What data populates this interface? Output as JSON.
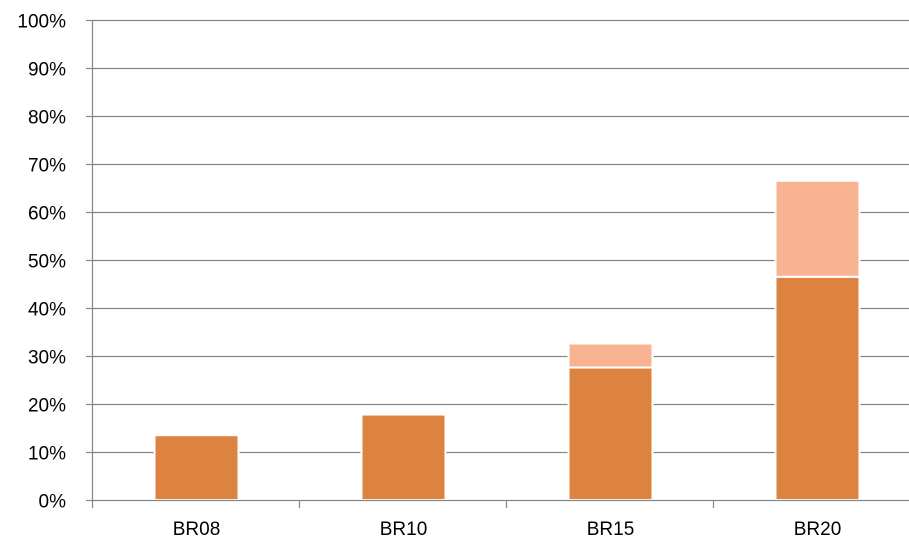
{
  "chart_data": {
    "type": "bar",
    "stacked": true,
    "categories": [
      "BR08",
      "BR10",
      "BR15",
      "BR20"
    ],
    "series": [
      {
        "values": [
          13.5,
          17.8,
          27.6,
          46.5
        ],
        "color": "#DC843F"
      },
      {
        "values": [
          0,
          0,
          5.0,
          20.0
        ],
        "color": "#F8B392"
      }
    ],
    "ylim": [
      0,
      100
    ],
    "yticks": [
      0,
      10,
      20,
      30,
      40,
      50,
      60,
      70,
      80,
      90,
      100
    ],
    "ytick_labels": [
      "0%",
      "10%",
      "20%",
      "30%",
      "40%",
      "50%",
      "60%",
      "70%",
      "80%",
      "90%",
      "100%"
    ],
    "grid": true,
    "gridline_color": "#868686",
    "title": "",
    "xlabel": "",
    "ylabel": ""
  }
}
